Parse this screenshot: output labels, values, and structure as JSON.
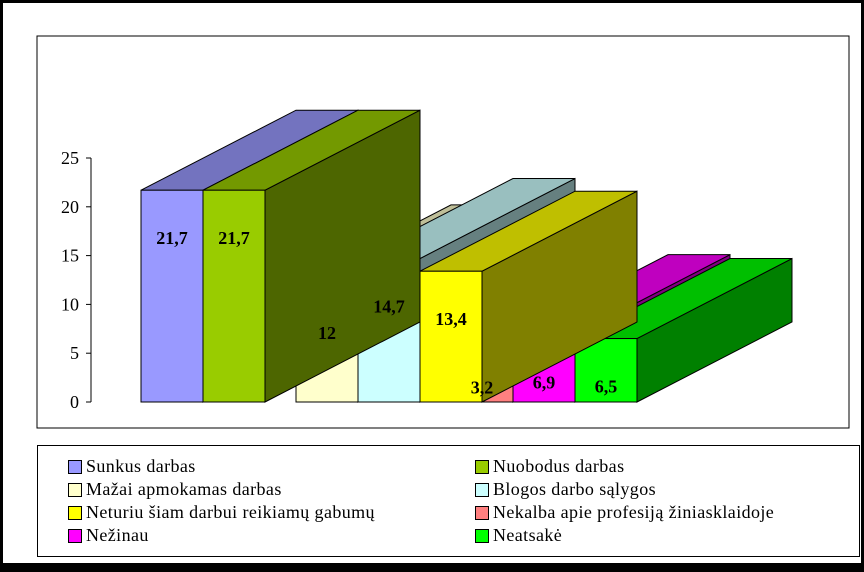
{
  "chart_data": {
    "type": "bar",
    "three_d": true,
    "title": "",
    "xlabel": "",
    "ylabel": "",
    "ylim": [
      0,
      25
    ],
    "yticks": [
      0,
      5,
      10,
      15,
      20,
      25
    ],
    "grid": false,
    "legend_position": "bottom",
    "value_format": "comma-decimal",
    "series": [
      {
        "name": "Sunkus darbas",
        "value": 21.7,
        "label": "21,7",
        "color": "#9999ff"
      },
      {
        "name": "Nuobodus darbas",
        "value": 21.7,
        "label": "21,7",
        "color": "#99cc00"
      },
      {
        "name": "Mažai apmokamas darbas",
        "value": 12,
        "label": "12",
        "color": "#ffffcc"
      },
      {
        "name": "Blogos darbo sąlygos",
        "value": 14.7,
        "label": "14,7",
        "color": "#ccffff"
      },
      {
        "name": "Neturiu šiam darbui reikiamų gabumų",
        "value": 13.4,
        "label": "13,4",
        "color": "#ffff00"
      },
      {
        "name": "Nekalba apie profesiją žiniasklaidoje",
        "value": 3.2,
        "label": "3,2",
        "color": "#ff8080"
      },
      {
        "name": "Nežinau",
        "value": 6.9,
        "label": "6,9",
        "color": "#ff00ff"
      },
      {
        "name": "Neatsakė",
        "value": 6.5,
        "label": "6,5",
        "color": "#00ff00"
      }
    ]
  }
}
